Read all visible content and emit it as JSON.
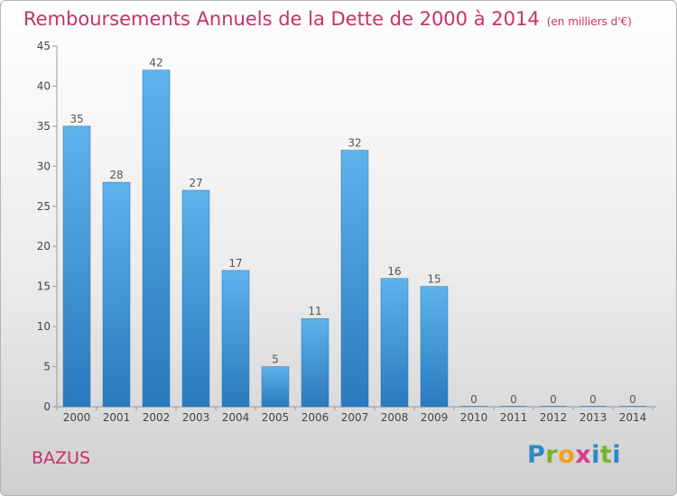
{
  "title": "Remboursements Annuels de la Dette de 2000 à 2014",
  "unit": "(en milliers d'€)",
  "place": "BAZUS",
  "logo": {
    "letters": [
      "P",
      "r",
      "o",
      "x",
      "i",
      "t",
      "i"
    ],
    "colors": [
      "#2e89c9",
      "#7ab42c",
      "#f2a01c",
      "#d93b86",
      "#2e89c9",
      "#7ab42c",
      "#2e89c9"
    ]
  },
  "chart_data": {
    "type": "bar",
    "categories": [
      "2000",
      "2001",
      "2002",
      "2003",
      "2004",
      "2005",
      "2006",
      "2007",
      "2008",
      "2009",
      "2010",
      "2011",
      "2012",
      "2013",
      "2014"
    ],
    "values": [
      35,
      28,
      42,
      27,
      17,
      5,
      11,
      32,
      16,
      15,
      0,
      0,
      0,
      0,
      0
    ],
    "title": "Remboursements Annuels de la Dette de 2000 à 2014",
    "xlabel": "",
    "ylabel": "",
    "ylim": [
      0,
      45
    ],
    "yticks": [
      0,
      5,
      10,
      15,
      20,
      25,
      30,
      35,
      40,
      45
    ],
    "grid": false,
    "bar_color": "#3e95d6"
  }
}
